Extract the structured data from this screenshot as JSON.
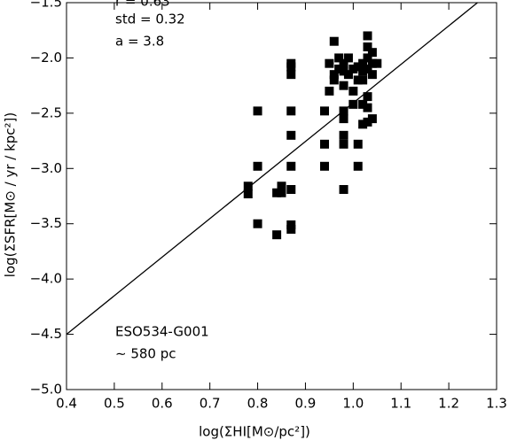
{
  "chart_data": {
    "type": "scatter",
    "xlabel": "log(ΣHI[M⊙/pc²])",
    "ylabel": "log(ΣSFR[M⊙ / yr / kpc²])",
    "annotations": [
      "r = 0.63",
      "std = 0.32",
      "a = 3.8"
    ],
    "label": [
      "ESO534-G001",
      "∼ 580 pc"
    ],
    "color": "#000000",
    "xlim": [
      0.4,
      1.3
    ],
    "ylim": [
      -5,
      -1.5
    ],
    "xticks": [
      0.4,
      0.5,
      0.6,
      0.7,
      0.8,
      0.9,
      {
        "value": 1,
        "label": "1.0"
      },
      1.1,
      1.2,
      1.3
    ],
    "yticks": [
      {
        "value": -5,
        "label": "−5.0"
      },
      {
        "value": -4.5,
        "label": "−4.5"
      },
      {
        "value": -4,
        "label": "−4.0"
      },
      {
        "value": -3.5,
        "label": "−3.5"
      },
      {
        "value": -3,
        "label": "−3.0"
      },
      {
        "value": -2.5,
        "label": "−2.5"
      },
      {
        "value": -2,
        "label": "−2.0"
      },
      {
        "value": -1.5,
        "label": "−1.5"
      }
    ],
    "fit_line": {
      "x": [
        0.4,
        1.26
      ],
      "y": [
        -4.5,
        -1.5
      ]
    },
    "x": [
      0.78,
      0.78,
      0.8,
      0.8,
      0.8,
      0.84,
      0.84,
      0.85,
      0.85,
      0.87,
      0.87,
      0.87,
      0.87,
      0.87,
      0.87,
      0.87,
      0.87,
      0.87,
      0.94,
      0.94,
      0.94,
      0.95,
      0.95,
      0.96,
      0.96,
      0.96,
      0.97,
      0.97,
      0.98,
      0.98,
      0.98,
      0.98,
      0.98,
      0.98,
      0.98,
      0.98,
      0.99,
      0.99,
      1.0,
      1.0,
      1.0,
      1.01,
      1.01,
      1.01,
      1.01,
      1.02,
      1.02,
      1.02,
      1.02,
      1.03,
      1.03,
      1.03,
      1.03,
      1.03,
      1.03,
      1.03,
      1.04,
      1.04,
      1.04,
      1.04,
      1.05,
      1.02
    ],
    "values": [
      -3.16,
      -3.23,
      -2.48,
      -2.98,
      -3.5,
      -3.6,
      -3.22,
      -3.16,
      -3.22,
      -2.05,
      -2.08,
      -2.15,
      -2.48,
      -2.7,
      -2.98,
      -3.19,
      -3.51,
      -3.55,
      -2.48,
      -2.78,
      -2.98,
      -2.3,
      -2.05,
      -2.2,
      -2.15,
      -1.85,
      -2.1,
      -2.0,
      -2.25,
      -2.12,
      -2.05,
      -2.48,
      -2.55,
      -2.7,
      -2.78,
      -3.19,
      -2.0,
      -2.15,
      -2.1,
      -2.3,
      -2.42,
      -2.08,
      -2.2,
      -2.78,
      -2.98,
      -2.05,
      -2.12,
      -2.2,
      -2.42,
      -1.8,
      -1.9,
      -2.0,
      -2.1,
      -2.35,
      -2.45,
      -2.58,
      -1.95,
      -2.05,
      -2.15,
      -2.55,
      -2.05,
      -2.6
    ]
  }
}
